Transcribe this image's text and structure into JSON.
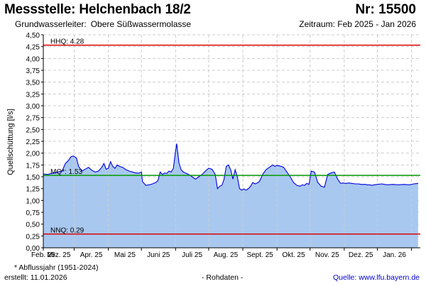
{
  "header": {
    "title": "Messstelle: Helchenbach 18/2",
    "number": "Nr: 15500",
    "aquifer_label": "Grundwasserleiter:",
    "aquifer_value": "Obere Süßwassermolasse",
    "period": "Zeitraum: Feb 2025 - Jan 2026"
  },
  "footer": {
    "note": "* Abflussjahr (1951-2024)",
    "created": "erstellt:  11.01.2026",
    "raw_data": "- Rohdaten -",
    "source": "Quelle: www.lfu.bayern.de"
  },
  "colors": {
    "area_fill": "#a8c8f0",
    "series_line": "#0000dd",
    "hhq_line": "#dd0000",
    "nnq_line": "#dd0000",
    "mq_line": "#009900",
    "grid": "#cccccc"
  },
  "chart_data": {
    "type": "area",
    "ylabel": "Quellschüttung [l/s]",
    "xlabel": "",
    "ylim": [
      0,
      4.5
    ],
    "grid": true,
    "y_ticks": [
      "0,00",
      "0,25",
      "0,50",
      "0,75",
      "1,00",
      "1,25",
      "1,50",
      "1,75",
      "2,00",
      "2,25",
      "2,50",
      "2,75",
      "3,00",
      "3,25",
      "3,50",
      "3,75",
      "4,00",
      "4,25",
      "4,50"
    ],
    "x_ticks": [
      "Feb. 25",
      "Mrz. 25",
      "Apr. 25",
      "Mai 25",
      "Juni 25",
      "Juli 25",
      "Aug. 25",
      "Sept. 25",
      "Okt. 25",
      "Nov. 25",
      "Dez. 25",
      "Jan. 26"
    ],
    "reference_lines": [
      {
        "label": "HHQ: 4.28",
        "value": 4.28
      },
      {
        "label": "MQ*: 1.53",
        "value": 1.53
      },
      {
        "label": "NNQ: 0.29",
        "value": 0.29
      }
    ],
    "series": [
      {
        "x": [
          "2025-02-01",
          "2025-02-05",
          "2025-02-10",
          "2025-02-14",
          "2025-02-18",
          "2025-02-21",
          "2025-02-24",
          "2025-02-26",
          "2025-02-28",
          "2025-03-03",
          "2025-03-05",
          "2025-03-08",
          "2025-03-11",
          "2025-03-14",
          "2025-03-17",
          "2025-03-20",
          "2025-03-23",
          "2025-03-26",
          "2025-03-28",
          "2025-03-30",
          "2025-04-01",
          "2025-04-03",
          "2025-04-05",
          "2025-04-07",
          "2025-04-09",
          "2025-04-11",
          "2025-04-14",
          "2025-04-17",
          "2025-04-20",
          "2025-04-23",
          "2025-04-26",
          "2025-04-29",
          "2025-05-01",
          "2025-05-02",
          "2025-05-05",
          "2025-05-08",
          "2025-05-11",
          "2025-05-14",
          "2025-05-16",
          "2025-05-18",
          "2025-05-20",
          "2025-05-22",
          "2025-05-24",
          "2025-05-26",
          "2025-05-28",
          "2025-05-30",
          "2025-06-01",
          "2025-06-02",
          "2025-06-04",
          "2025-06-06",
          "2025-06-08",
          "2025-06-10",
          "2025-06-13",
          "2025-06-16",
          "2025-06-19",
          "2025-06-22",
          "2025-06-25",
          "2025-06-28",
          "2025-07-01",
          "2025-07-04",
          "2025-07-07",
          "2025-07-09",
          "2025-07-11",
          "2025-07-13",
          "2025-07-15",
          "2025-07-17",
          "2025-07-19",
          "2025-07-21",
          "2025-07-23",
          "2025-07-25",
          "2025-07-27",
          "2025-07-29",
          "2025-07-31",
          "2025-08-02",
          "2025-08-04",
          "2025-08-06",
          "2025-08-08",
          "2025-08-10",
          "2025-08-12",
          "2025-08-14",
          "2025-08-16",
          "2025-08-19",
          "2025-08-22",
          "2025-08-25",
          "2025-08-28",
          "2025-08-30",
          "2025-09-01",
          "2025-09-03",
          "2025-09-05",
          "2025-09-07",
          "2025-09-10",
          "2025-09-13",
          "2025-09-16",
          "2025-09-19",
          "2025-09-22",
          "2025-09-24",
          "2025-09-26",
          "2025-09-28",
          "2025-09-30",
          "2025-10-02",
          "2025-10-05",
          "2025-10-08",
          "2025-10-11",
          "2025-10-14",
          "2025-10-17",
          "2025-10-20",
          "2025-10-23",
          "2025-10-26",
          "2025-10-28",
          "2025-10-29",
          "2025-10-31",
          "2025-11-02",
          "2025-11-05",
          "2025-11-08",
          "2025-11-11",
          "2025-11-14",
          "2025-11-16",
          "2025-11-18",
          "2025-11-20",
          "2025-11-22",
          "2025-11-24",
          "2025-11-26",
          "2025-11-28",
          "2025-12-01",
          "2025-12-05",
          "2025-12-10",
          "2025-12-15",
          "2025-12-20",
          "2025-12-25",
          "2025-12-30",
          "2026-01-03",
          "2026-01-07"
        ],
        "values": [
          1.56,
          1.55,
          1.58,
          1.6,
          1.62,
          1.78,
          1.85,
          1.92,
          1.94,
          1.9,
          1.72,
          1.62,
          1.66,
          1.7,
          1.64,
          1.6,
          1.62,
          1.7,
          1.78,
          1.66,
          1.68,
          1.82,
          1.72,
          1.68,
          1.75,
          1.72,
          1.7,
          1.65,
          1.62,
          1.6,
          1.58,
          1.58,
          1.6,
          1.4,
          1.32,
          1.33,
          1.35,
          1.38,
          1.42,
          1.6,
          1.55,
          1.58,
          1.57,
          1.62,
          1.6,
          1.68,
          2.05,
          2.2,
          1.8,
          1.65,
          1.6,
          1.58,
          1.55,
          1.5,
          1.45,
          1.5,
          1.55,
          1.62,
          1.68,
          1.66,
          1.55,
          1.25,
          1.3,
          1.32,
          1.45,
          1.72,
          1.75,
          1.65,
          1.45,
          1.65,
          1.5,
          1.25,
          1.22,
          1.24,
          1.22,
          1.25,
          1.3,
          1.38,
          1.35,
          1.37,
          1.4,
          1.55,
          1.65,
          1.7,
          1.75,
          1.72,
          1.74,
          1.73,
          1.72,
          1.7,
          1.6,
          1.5,
          1.38,
          1.32,
          1.3,
          1.33,
          1.32,
          1.36,
          1.34,
          1.62,
          1.6,
          1.38,
          1.3,
          1.28,
          1.55,
          1.58,
          1.6,
          1.45,
          1.38,
          1.36,
          1.37,
          1.36,
          1.37,
          1.36,
          1.35,
          1.35,
          1.34,
          1.34,
          1.34,
          1.33,
          1.33,
          1.32,
          1.33,
          1.34,
          1.35,
          1.33,
          1.34,
          1.33,
          1.34,
          1.33,
          1.35,
          1.36
        ]
      }
    ]
  }
}
